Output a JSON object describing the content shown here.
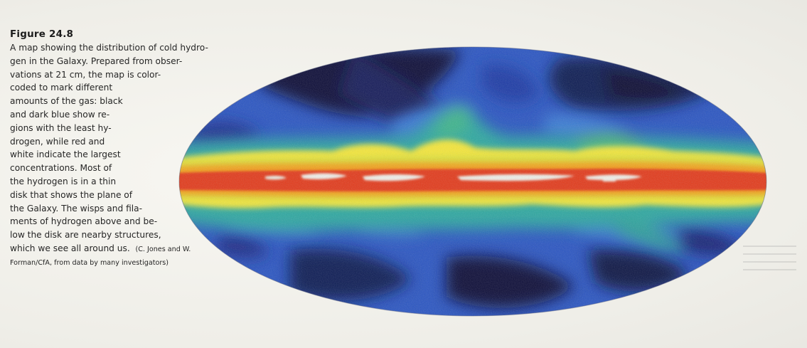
{
  "figure": {
    "label": "Figure 24.8",
    "caption_lines": [
      "A map showing the distribution of cold hydro-",
      "gen in the Galaxy. Prepared from obser-",
      "vations at 21 cm, the map is color-",
      "coded to mark different",
      "amounts of the gas: black",
      "and dark blue show re-",
      "gions with the least hy-",
      "drogen, while red and",
      "white indicate the largest",
      "concentrations. Most of",
      "the hydrogen is in a thin",
      "disk that shows the plane of",
      "the Galaxy. The wisps and fila-",
      "ments of hydrogen above and be-",
      "low the disk are nearby structures,",
      "which we see all around us."
    ],
    "credit": "(C. Jones and W.",
    "credit_line2": "Forman/CfA, from data by many investigators)"
  },
  "map": {
    "color_scale": [
      "#0a0f3a",
      "#1b2f9c",
      "#2d63c8",
      "#2fa8a0",
      "#8fd14a",
      "#f4e63a",
      "#f2a01e",
      "#e23a1c",
      "#f0f0ea"
    ]
  }
}
